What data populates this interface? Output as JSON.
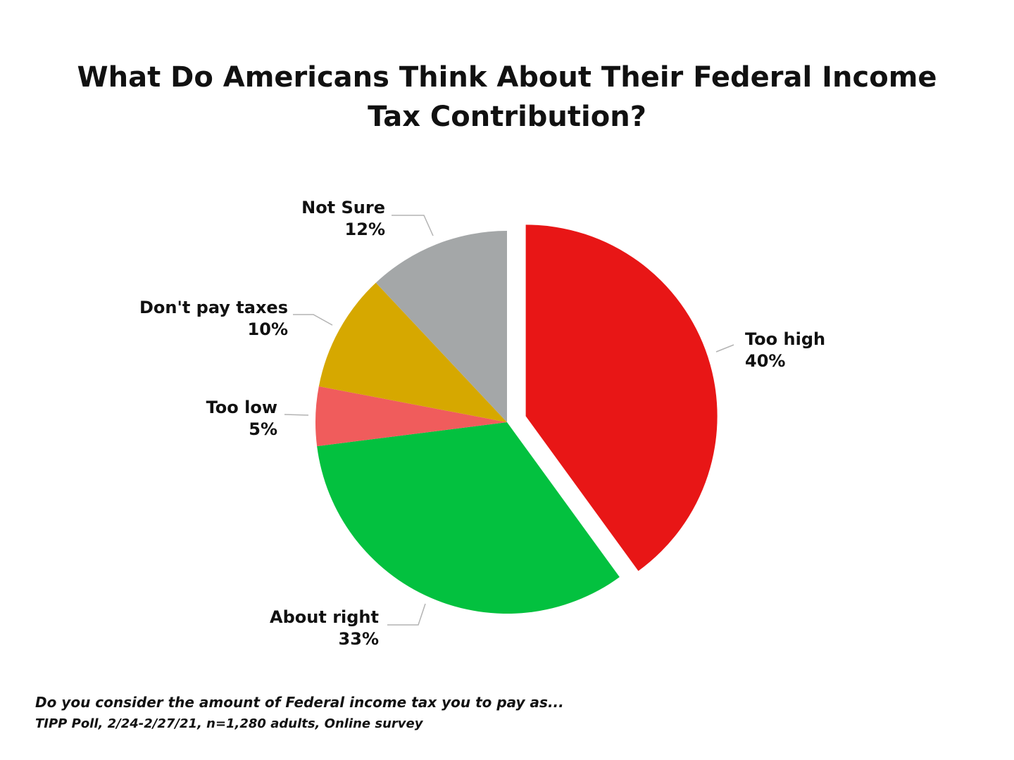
{
  "chart_data": {
    "type": "pie",
    "title": "What Do Americans Think About Their Federal Income Tax Contribution?",
    "title_lines": [
      "What Do Americans Think About Their Federal Income",
      "Tax Contribution?"
    ],
    "slices": [
      {
        "label": "Too high",
        "value": 40,
        "value_label": "40%",
        "color": "#e81616",
        "exploded": true
      },
      {
        "label": "About right",
        "value": 33,
        "value_label": "33%",
        "color": "#03c13f",
        "exploded": false
      },
      {
        "label": "Too low",
        "value": 5,
        "value_label": "5%",
        "color": "#f05c5c",
        "exploded": false
      },
      {
        "label": "Don't pay taxes",
        "value": 10,
        "value_label": "10%",
        "color": "#d6a800",
        "exploded": false
      },
      {
        "label": "Not Sure",
        "value": 12,
        "value_label": "12%",
        "color": "#a4a7a8",
        "exploded": false
      }
    ],
    "start_angle": "12 o'clock",
    "direction": "clockwise",
    "legend": "none",
    "data_labels": "outside with leader lines"
  },
  "footer": {
    "question": "Do you consider the amount of Federal income tax you to pay as...",
    "source": "TIPP Poll, 2/24-2/27/21, n=1,280 adults, Online survey"
  }
}
